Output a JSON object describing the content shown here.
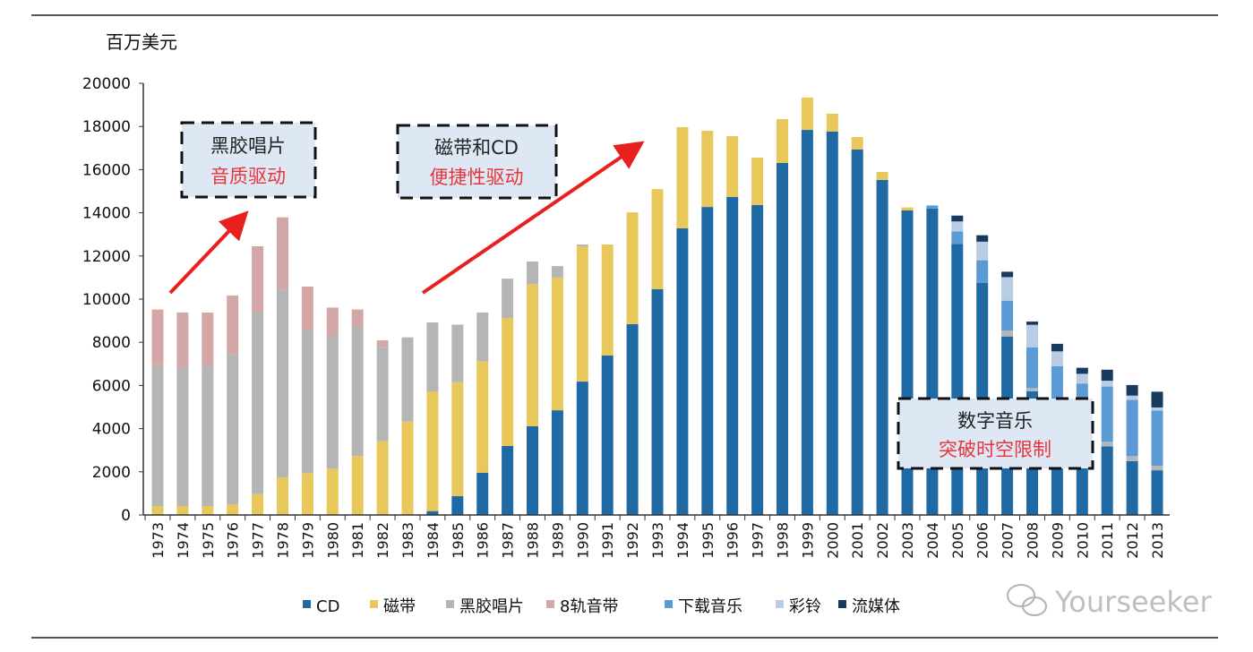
{
  "chart_data": {
    "type": "bar",
    "stacked": true,
    "unit_label": "百万美元",
    "ylim": [
      0,
      20000
    ],
    "yticks": [
      0,
      2000,
      4000,
      6000,
      8000,
      10000,
      12000,
      14000,
      16000,
      18000,
      20000
    ],
    "grid": false,
    "legend_position": "bottom",
    "categories": [
      "1973",
      "1974",
      "1975",
      "1976",
      "1977",
      "1978",
      "1979",
      "1980",
      "1981",
      "1982",
      "1983",
      "1984",
      "1985",
      "1986",
      "1987",
      "1988",
      "1989",
      "1990",
      "1991",
      "1992",
      "1993",
      "1994",
      "1995",
      "1996",
      "1997",
      "1998",
      "1999",
      "2000",
      "2001",
      "2002",
      "2003",
      "2004",
      "2005",
      "2006",
      "2007",
      "2008",
      "2009",
      "2010",
      "2011",
      "2012",
      "2013"
    ],
    "series": [
      {
        "name": "CD",
        "color": "#1f6aa5",
        "values": [
          0,
          0,
          0,
          0,
          0,
          0,
          0,
          0,
          0,
          0,
          0,
          180,
          870,
          1960,
          3200,
          4110,
          4850,
          6180,
          7390,
          8840,
          10460,
          13280,
          14270,
          14730,
          14360,
          16310,
          17840,
          17760,
          16930,
          15520,
          14110,
          14200,
          12560,
          10760,
          8270,
          5730,
          4300,
          3400,
          3180,
          2490,
          2070
        ]
      },
      {
        "name": "磁带",
        "color": "#e8c85a",
        "values": [
          415,
          415,
          415,
          485,
          970,
          1730,
          1940,
          2145,
          2725,
          3415,
          4330,
          5530,
          5280,
          5160,
          5930,
          6590,
          6150,
          6270,
          5140,
          5180,
          4640,
          4690,
          3530,
          2820,
          2200,
          2030,
          1500,
          830,
          580,
          370,
          140,
          0,
          0,
          0,
          0,
          0,
          0,
          0,
          0,
          0,
          0
        ]
      },
      {
        "name": "黑胶唱片",
        "color": "#b5b5b5",
        "values": [
          6565,
          6435,
          6495,
          6955,
          8430,
          8710,
          6630,
          6155,
          5985,
          4375,
          3900,
          3210,
          2670,
          2260,
          1820,
          1040,
          530,
          80,
          0,
          0,
          0,
          0,
          0,
          0,
          0,
          0,
          0,
          0,
          0,
          0,
          0,
          0,
          0,
          0,
          270,
          150,
          150,
          200,
          210,
          240,
          210
        ]
      },
      {
        "name": "8轨音带",
        "color": "#d4a7a7",
        "values": [
          2540,
          2530,
          2470,
          2730,
          3050,
          3350,
          2010,
          1310,
          810,
          300,
          0,
          0,
          0,
          0,
          0,
          0,
          0,
          0,
          0,
          0,
          0,
          0,
          0,
          0,
          0,
          0,
          0,
          0,
          0,
          0,
          0,
          0,
          0,
          0,
          0,
          0,
          0,
          0,
          0,
          0,
          0
        ]
      },
      {
        "name": "下载音乐",
        "color": "#5b9bd5",
        "values": [
          0,
          0,
          0,
          0,
          0,
          0,
          0,
          0,
          0,
          0,
          0,
          0,
          0,
          0,
          0,
          0,
          0,
          0,
          0,
          0,
          0,
          0,
          0,
          0,
          0,
          0,
          0,
          0,
          0,
          0,
          0,
          140,
          580,
          1040,
          1390,
          1890,
          2440,
          2490,
          2560,
          2600,
          2560
        ]
      },
      {
        "name": "彩铃",
        "color": "#b8cce4",
        "values": [
          0,
          0,
          0,
          0,
          0,
          0,
          0,
          0,
          0,
          0,
          0,
          0,
          0,
          0,
          0,
          0,
          0,
          0,
          0,
          0,
          0,
          0,
          0,
          0,
          0,
          0,
          0,
          0,
          0,
          0,
          0,
          0,
          460,
          860,
          1090,
          1040,
          690,
          450,
          270,
          200,
          140
        ]
      },
      {
        "name": "流媒体",
        "color": "#173a5e",
        "values": [
          0,
          0,
          0,
          0,
          0,
          0,
          0,
          0,
          0,
          0,
          0,
          0,
          0,
          0,
          0,
          0,
          0,
          0,
          0,
          0,
          0,
          0,
          0,
          0,
          0,
          0,
          0,
          0,
          0,
          0,
          0,
          0,
          270,
          300,
          250,
          150,
          350,
          280,
          510,
          490,
          730
        ]
      }
    ],
    "annotations": [
      {
        "line1": "黑胶唱片",
        "line2": "音质驱动"
      },
      {
        "line1": "磁带和CD",
        "line2": "便捷性驱动"
      },
      {
        "line1": "数字音乐",
        "line2": "突破时空限制"
      }
    ]
  },
  "watermark": "Yourseeker"
}
